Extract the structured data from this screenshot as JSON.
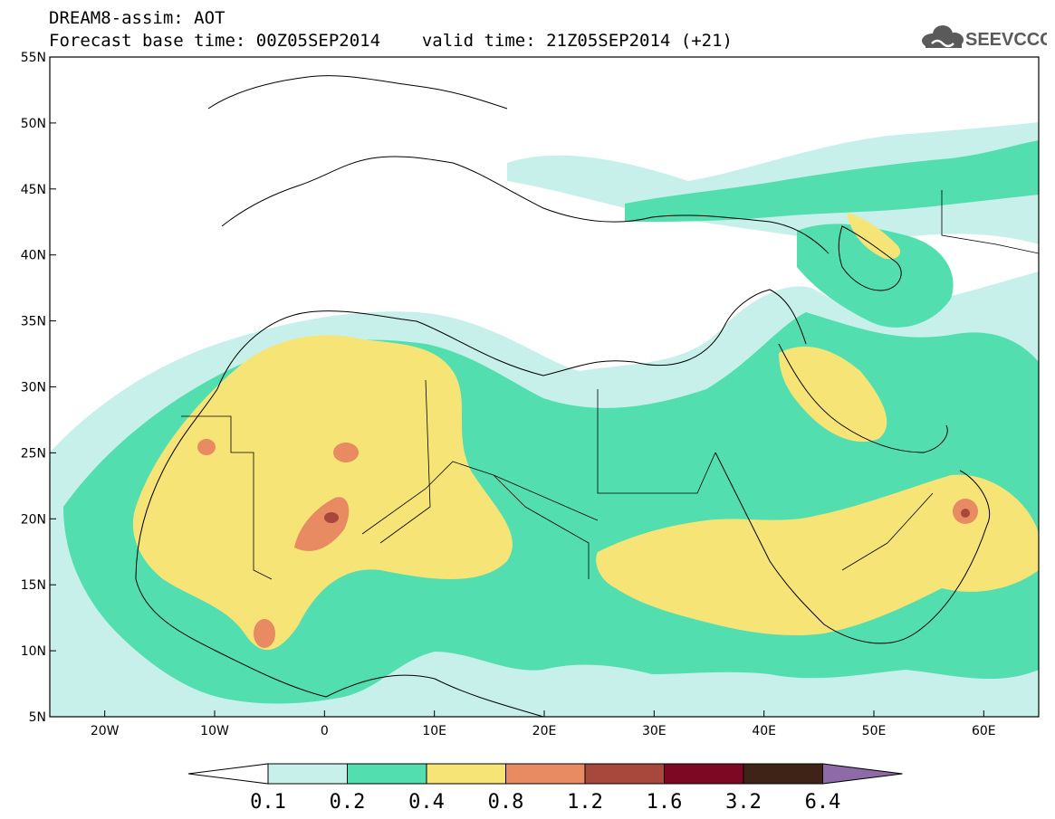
{
  "header": {
    "title_line1": "DREAM8-assim: AOT",
    "base_time_label": "Forecast base time: 00Z05SEP2014",
    "valid_time_label": "valid time: 21Z05SEP2014 (+21)"
  },
  "logo": {
    "text": "SEEVCCC",
    "icon": "cloud-icon"
  },
  "map": {
    "lon_range": [
      -25,
      65
    ],
    "lat_range": [
      5,
      55
    ],
    "lon_ticks": [
      {
        "value": -20,
        "label": "20W"
      },
      {
        "value": -10,
        "label": "10W"
      },
      {
        "value": 0,
        "label": "0"
      },
      {
        "value": 10,
        "label": "10E"
      },
      {
        "value": 20,
        "label": "20E"
      },
      {
        "value": 30,
        "label": "30E"
      },
      {
        "value": 40,
        "label": "40E"
      },
      {
        "value": 50,
        "label": "50E"
      },
      {
        "value": 60,
        "label": "60E"
      }
    ],
    "lat_ticks": [
      {
        "value": 5,
        "label": "5N"
      },
      {
        "value": 10,
        "label": "10N"
      },
      {
        "value": 15,
        "label": "15N"
      },
      {
        "value": 20,
        "label": "20N"
      },
      {
        "value": 25,
        "label": "25N"
      },
      {
        "value": 30,
        "label": "30N"
      },
      {
        "value": 35,
        "label": "35N"
      },
      {
        "value": 40,
        "label": "40N"
      },
      {
        "value": 45,
        "label": "45N"
      },
      {
        "value": 50,
        "label": "50N"
      },
      {
        "value": 55,
        "label": "55N"
      }
    ]
  },
  "legend": {
    "levels": [
      "0.1",
      "0.2",
      "0.4",
      "0.8",
      "1.2",
      "1.6",
      "3.2",
      "6.4"
    ],
    "colors": [
      "#ffffff",
      "#c7f0ea",
      "#52deae",
      "#f6e576",
      "#e88a62",
      "#a8483c",
      "#7d0823",
      "#3e2316",
      "#8f6aa8"
    ]
  }
}
